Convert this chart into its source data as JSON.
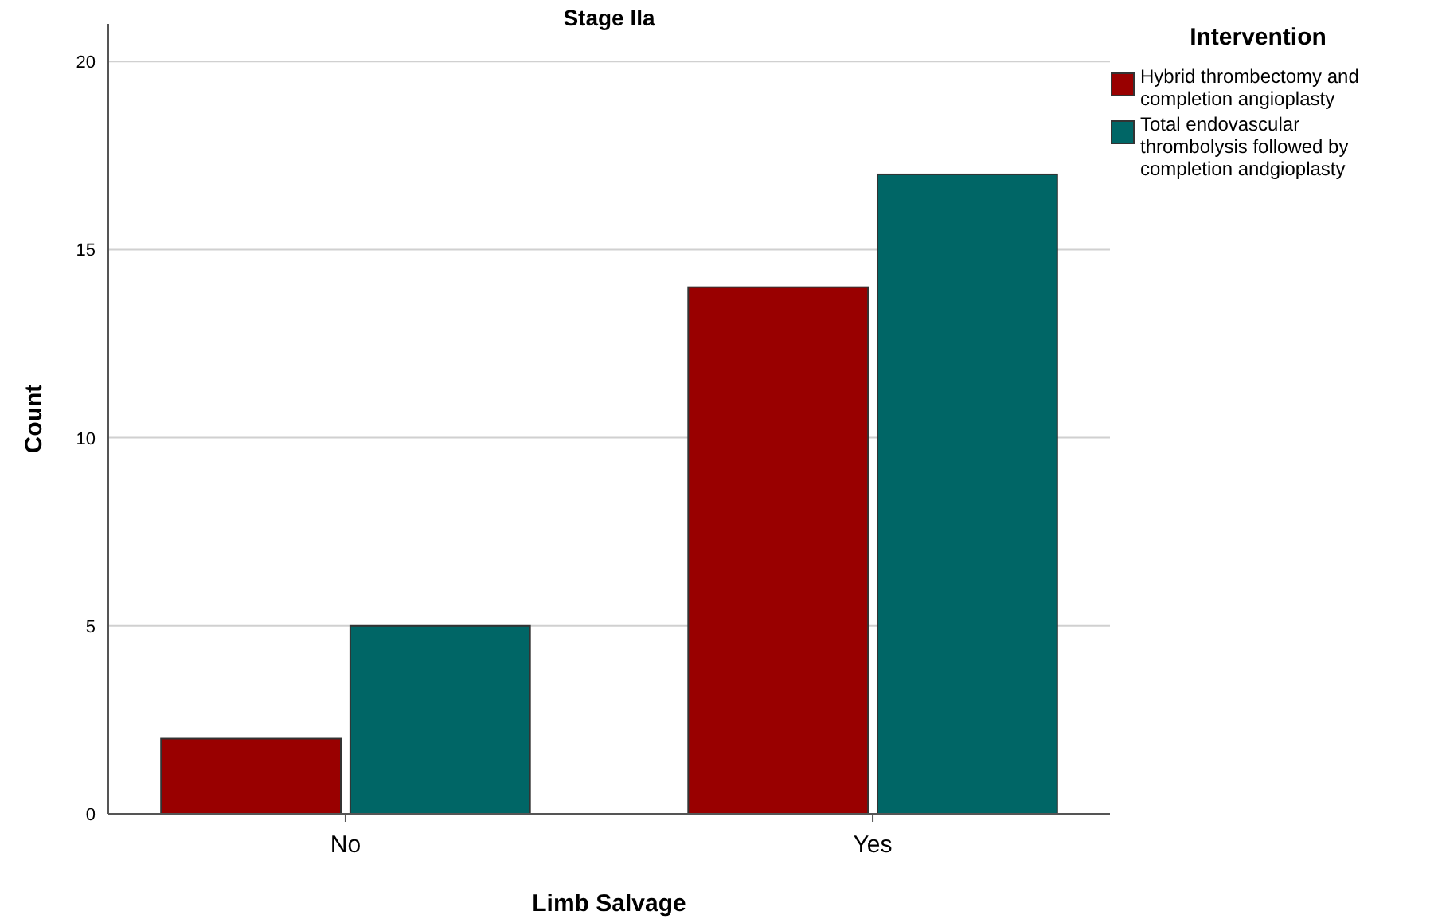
{
  "chart_data": {
    "type": "bar",
    "title": "Stage IIa",
    "xlabel": "Limb Salvage",
    "ylabel": "Count",
    "legend_title": "Intervention",
    "categories": [
      "No",
      "Yes"
    ],
    "series": [
      {
        "name": "Hybrid thrombectomy and completion angioplasty",
        "color": "#990000",
        "values": [
          2,
          14
        ]
      },
      {
        "name": "Total endovascular thrombolysis followed by completion andgioplasty",
        "color": "#006666",
        "values": [
          5,
          17
        ]
      }
    ],
    "ylim": [
      0,
      21
    ],
    "yticks": [
      0,
      5,
      10,
      15,
      20
    ],
    "grid": "y",
    "legend": "right"
  }
}
